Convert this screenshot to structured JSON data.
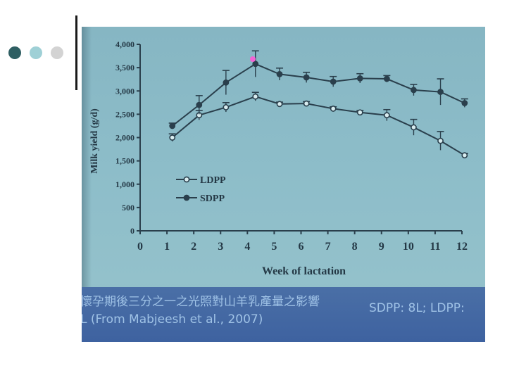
{
  "slide": {
    "bullet_colors": [
      "#2f5f63",
      "#9fd0d6",
      "#d3d3d3"
    ]
  },
  "caption": {
    "line1": "懷孕期後三分之一之光照對山羊乳產量之影響",
    "line1_right": "SDPP: 8L; LDPP:",
    "line2": "L (From Mabjeesh et al., 2007)"
  },
  "chart_data": {
    "type": "line",
    "title": "",
    "xlabel": "Week of lactation",
    "ylabel": "Milk yield (g/d)",
    "xlim": [
      0,
      12
    ],
    "ylim": [
      0,
      4000
    ],
    "x_ticks": [
      "0",
      "1",
      "2",
      "3",
      "4",
      "5",
      "6",
      "7",
      "8",
      "9",
      "10",
      "11",
      "12"
    ],
    "y_ticks": [
      "0",
      "500",
      "1,000",
      "1,500",
      "2,000",
      "2,500",
      "3,000",
      "3,500",
      "4,000"
    ],
    "legend_position": "middle-left",
    "series": [
      {
        "name": "LDPP",
        "marker": "open-circle",
        "x": [
          1.2,
          2.2,
          3.2,
          4.3,
          5.2,
          6.2,
          7.2,
          8.2,
          9.2,
          10.2,
          11.2,
          12.1
        ],
        "values": [
          2000,
          2480,
          2650,
          2880,
          2720,
          2730,
          2620,
          2540,
          2480,
          2220,
          1930,
          1620
        ],
        "errors": [
          80,
          100,
          100,
          90,
          40,
          40,
          40,
          40,
          120,
          170,
          200,
          40
        ]
      },
      {
        "name": "SDPP",
        "marker": "filled-circle",
        "x": [
          1.2,
          2.2,
          3.2,
          4.3,
          5.2,
          6.2,
          7.2,
          8.2,
          9.2,
          10.2,
          11.2,
          12.1
        ],
        "values": [
          2250,
          2700,
          3180,
          3580,
          3360,
          3290,
          3200,
          3270,
          3260,
          3020,
          2980,
          2740
        ],
        "errors": [
          60,
          200,
          260,
          280,
          130,
          110,
          110,
          100,
          70,
          120,
          280,
          90
        ]
      }
    ]
  }
}
